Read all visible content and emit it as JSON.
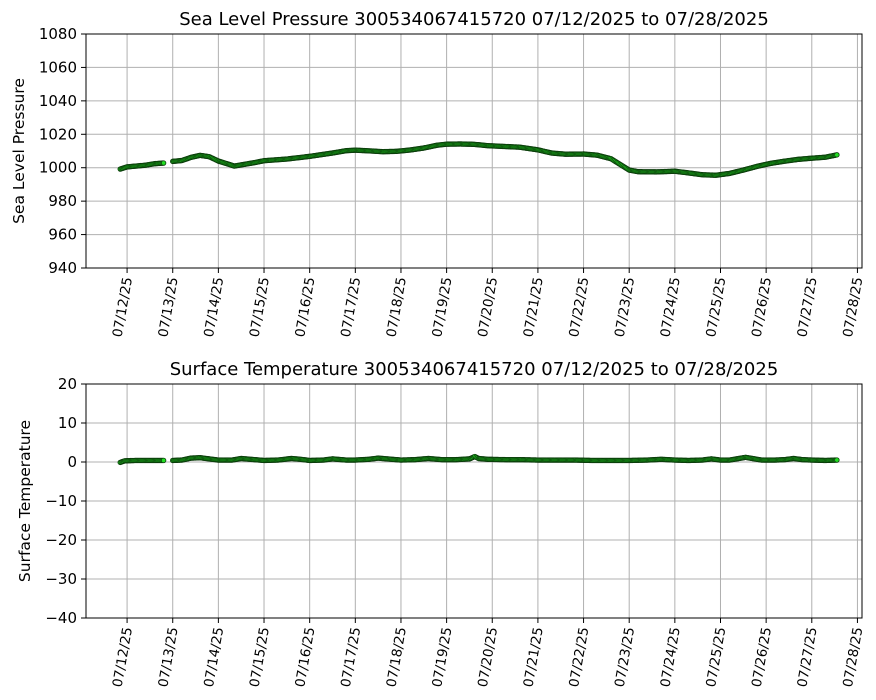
{
  "chart_data": [
    {
      "type": "scatter",
      "title": "Sea Level Pressure 300534067415720  07/12/2025 to 07/28/2025",
      "ylabel": "Sea Level Pressure",
      "xlabel": "",
      "ylim": [
        940,
        1080
      ],
      "yticks": [
        940,
        960,
        980,
        1000,
        1020,
        1040,
        1060,
        1080
      ],
      "xlim": [
        11.1,
        28.1
      ],
      "xticks": [
        12,
        13,
        14,
        15,
        16,
        17,
        18,
        19,
        20,
        21,
        22,
        23,
        24,
        25,
        26,
        27,
        28
      ],
      "xtick_labels": [
        "07/12/25",
        "07/13/25",
        "07/14/25",
        "07/15/25",
        "07/16/25",
        "07/17/25",
        "07/18/25",
        "07/19/25",
        "07/20/25",
        "07/21/25",
        "07/22/25",
        "07/23/25",
        "07/24/25",
        "07/25/25",
        "07/26/25",
        "07/27/25",
        "07/28/25"
      ],
      "grid": true,
      "marker_color": "#22dd22",
      "marker_edge": "#0a3a0a",
      "segments": [
        [
          [
            11.85,
            999.2
          ],
          [
            12.0,
            1000.5
          ],
          [
            12.2,
            1001.0
          ],
          [
            12.4,
            1001.5
          ],
          [
            12.6,
            1002.4
          ],
          [
            12.8,
            1002.8
          ]
        ],
        [
          [
            13.0,
            1003.8
          ],
          [
            13.2,
            1004.3
          ],
          [
            13.4,
            1006.2
          ],
          [
            13.6,
            1007.4
          ],
          [
            13.8,
            1006.6
          ],
          [
            14.0,
            1004.0
          ],
          [
            14.2,
            1002.3
          ],
          [
            14.35,
            1001.0
          ],
          [
            14.5,
            1001.7
          ],
          [
            14.8,
            1003.1
          ],
          [
            15.0,
            1004.2
          ],
          [
            15.5,
            1005.2
          ],
          [
            16.0,
            1006.8
          ],
          [
            16.3,
            1008.0
          ],
          [
            16.5,
            1008.8
          ],
          [
            16.8,
            1010.2
          ],
          [
            17.0,
            1010.5
          ],
          [
            17.3,
            1010.1
          ],
          [
            17.6,
            1009.6
          ],
          [
            17.9,
            1009.8
          ],
          [
            18.2,
            1010.6
          ],
          [
            18.5,
            1011.8
          ],
          [
            18.8,
            1013.5
          ],
          [
            19.0,
            1014.1
          ],
          [
            19.3,
            1014.2
          ],
          [
            19.6,
            1014.0
          ],
          [
            19.9,
            1013.2
          ],
          [
            20.2,
            1012.8
          ],
          [
            20.6,
            1012.3
          ],
          [
            21.0,
            1010.7
          ],
          [
            21.3,
            1008.8
          ],
          [
            21.6,
            1008.1
          ],
          [
            22.0,
            1008.2
          ],
          [
            22.3,
            1007.5
          ],
          [
            22.6,
            1005.4
          ],
          [
            22.8,
            1002.0
          ],
          [
            23.0,
            998.6
          ],
          [
            23.2,
            997.6
          ],
          [
            23.6,
            997.5
          ],
          [
            24.0,
            997.9
          ],
          [
            24.3,
            996.9
          ],
          [
            24.6,
            995.8
          ],
          [
            24.9,
            995.5
          ],
          [
            25.2,
            996.6
          ],
          [
            25.5,
            998.6
          ],
          [
            25.8,
            1000.8
          ],
          [
            26.1,
            1002.6
          ],
          [
            26.4,
            1003.9
          ],
          [
            26.7,
            1005.0
          ],
          [
            27.0,
            1005.7
          ],
          [
            27.3,
            1006.3
          ],
          [
            27.55,
            1007.7
          ]
        ]
      ]
    },
    {
      "type": "scatter",
      "title": "Surface Temperature 300534067415720  07/12/2025 to 07/28/2025",
      "ylabel": "Surface Temperature",
      "xlabel": "",
      "ylim": [
        -40,
        20
      ],
      "yticks": [
        -40,
        -30,
        -20,
        -10,
        0,
        10,
        20
      ],
      "ytick_labels": [
        "−40",
        "−30",
        "−20",
        "−10",
        "0",
        "10",
        "20"
      ],
      "xlim": [
        11.1,
        28.1
      ],
      "xticks": [
        12,
        13,
        14,
        15,
        16,
        17,
        18,
        19,
        20,
        21,
        22,
        23,
        24,
        25,
        26,
        27,
        28
      ],
      "xtick_labels": [
        "07/12/25",
        "07/13/25",
        "07/14/25",
        "07/15/25",
        "07/16/25",
        "07/17/25",
        "07/18/25",
        "07/19/25",
        "07/20/25",
        "07/21/25",
        "07/22/25",
        "07/23/25",
        "07/24/25",
        "07/25/25",
        "07/26/25",
        "07/27/25",
        "07/28/25"
      ],
      "grid": true,
      "marker_color": "#22dd22",
      "marker_edge": "#0a3a0a",
      "segments": [
        [
          [
            11.85,
            -0.1
          ],
          [
            11.95,
            0.3
          ],
          [
            12.2,
            0.4
          ],
          [
            12.5,
            0.4
          ],
          [
            12.8,
            0.4
          ]
        ],
        [
          [
            13.0,
            0.4
          ],
          [
            13.2,
            0.5
          ],
          [
            13.4,
            1.0
          ],
          [
            13.6,
            1.1
          ],
          [
            13.8,
            0.8
          ],
          [
            14.0,
            0.5
          ],
          [
            14.3,
            0.5
          ],
          [
            14.5,
            0.9
          ],
          [
            14.8,
            0.6
          ],
          [
            15.0,
            0.4
          ],
          [
            15.3,
            0.5
          ],
          [
            15.6,
            0.9
          ],
          [
            15.8,
            0.7
          ],
          [
            16.0,
            0.4
          ],
          [
            16.3,
            0.5
          ],
          [
            16.5,
            0.8
          ],
          [
            16.8,
            0.5
          ],
          [
            17.0,
            0.5
          ],
          [
            17.3,
            0.7
          ],
          [
            17.5,
            1.0
          ],
          [
            17.8,
            0.7
          ],
          [
            18.0,
            0.5
          ],
          [
            18.3,
            0.6
          ],
          [
            18.6,
            0.9
          ],
          [
            18.9,
            0.6
          ],
          [
            19.2,
            0.6
          ],
          [
            19.5,
            0.8
          ],
          [
            19.62,
            1.4
          ],
          [
            19.7,
            0.9
          ],
          [
            19.9,
            0.7
          ],
          [
            20.3,
            0.6
          ],
          [
            20.6,
            0.6
          ],
          [
            21.0,
            0.5
          ],
          [
            21.4,
            0.5
          ],
          [
            21.8,
            0.5
          ],
          [
            22.2,
            0.4
          ],
          [
            22.6,
            0.4
          ],
          [
            23.0,
            0.4
          ],
          [
            23.4,
            0.5
          ],
          [
            23.7,
            0.7
          ],
          [
            24.0,
            0.5
          ],
          [
            24.3,
            0.4
          ],
          [
            24.6,
            0.5
          ],
          [
            24.8,
            0.8
          ],
          [
            25.0,
            0.5
          ],
          [
            25.2,
            0.5
          ],
          [
            25.4,
            0.9
          ],
          [
            25.55,
            1.2
          ],
          [
            25.7,
            0.9
          ],
          [
            25.9,
            0.5
          ],
          [
            26.2,
            0.5
          ],
          [
            26.4,
            0.6
          ],
          [
            26.6,
            0.9
          ],
          [
            26.8,
            0.6
          ],
          [
            27.0,
            0.5
          ],
          [
            27.3,
            0.4
          ],
          [
            27.55,
            0.5
          ]
        ]
      ]
    }
  ]
}
